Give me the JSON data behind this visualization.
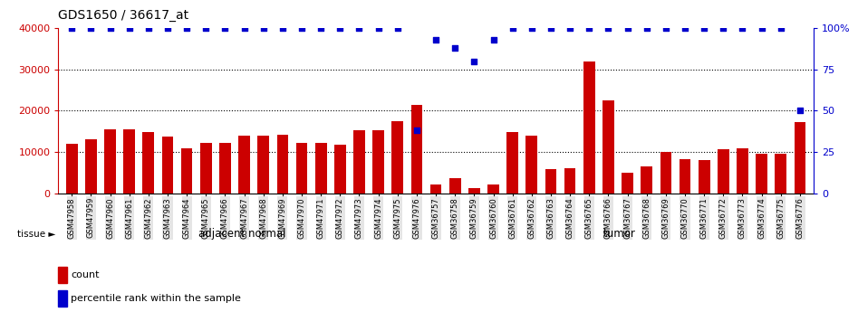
{
  "title": "GDS1650 / 36617_at",
  "categories": [
    "GSM47958",
    "GSM47959",
    "GSM47960",
    "GSM47961",
    "GSM47962",
    "GSM47963",
    "GSM47964",
    "GSM47965",
    "GSM47966",
    "GSM47967",
    "GSM47968",
    "GSM47969",
    "GSM47970",
    "GSM47971",
    "GSM47972",
    "GSM47973",
    "GSM47974",
    "GSM47975",
    "GSM47976",
    "GSM36757",
    "GSM36758",
    "GSM36759",
    "GSM36760",
    "GSM36761",
    "GSM36762",
    "GSM36763",
    "GSM36764",
    "GSM36765",
    "GSM36766",
    "GSM36767",
    "GSM36768",
    "GSM36769",
    "GSM36770",
    "GSM36771",
    "GSM36772",
    "GSM36773",
    "GSM36774",
    "GSM36775",
    "GSM36776"
  ],
  "counts": [
    12000,
    13000,
    15500,
    15500,
    14800,
    13700,
    11000,
    12200,
    12200,
    13900,
    13900,
    14200,
    12200,
    12200,
    11900,
    15200,
    15200,
    17500,
    21500,
    2200,
    3700,
    1400,
    2200,
    14800,
    14000,
    5800,
    6200,
    32000,
    22500,
    5000,
    6600,
    10000,
    8200,
    8000,
    10800,
    11000,
    9600,
    9600,
    17300
  ],
  "percentiles": [
    100,
    100,
    100,
    100,
    100,
    100,
    100,
    100,
    100,
    100,
    100,
    100,
    100,
    100,
    100,
    100,
    100,
    100,
    38,
    93,
    88,
    80,
    93,
    100,
    100,
    100,
    100,
    100,
    100,
    100,
    100,
    100,
    100,
    100,
    100,
    100,
    100,
    100,
    50
  ],
  "group_labels": [
    "adjacent normal",
    "tumor"
  ],
  "group_sizes": [
    19,
    20
  ],
  "bar_color": "#CC0000",
  "dot_color": "#0000CC",
  "ylim_left": [
    0,
    40000
  ],
  "ylim_right": [
    0,
    100
  ],
  "yticks_left": [
    0,
    10000,
    20000,
    30000,
    40000
  ],
  "ytick_labels_left": [
    "0",
    "10000",
    "20000",
    "30000",
    "40000"
  ],
  "yticks_right": [
    0,
    25,
    50,
    75,
    100
  ],
  "ytick_labels_right": [
    "0",
    "25",
    "50",
    "75",
    "100%"
  ],
  "grid_values": [
    10000,
    20000,
    30000
  ],
  "bg_color": "#FFFFFF",
  "label_color_left": "#CC0000",
  "label_color_right": "#0000CC",
  "legend_count_label": "count",
  "legend_pct_label": "percentile rank within the sample",
  "tissue_label": "tissue ►",
  "normal_color": "#AAFFAA",
  "tumor_color": "#00EE00"
}
